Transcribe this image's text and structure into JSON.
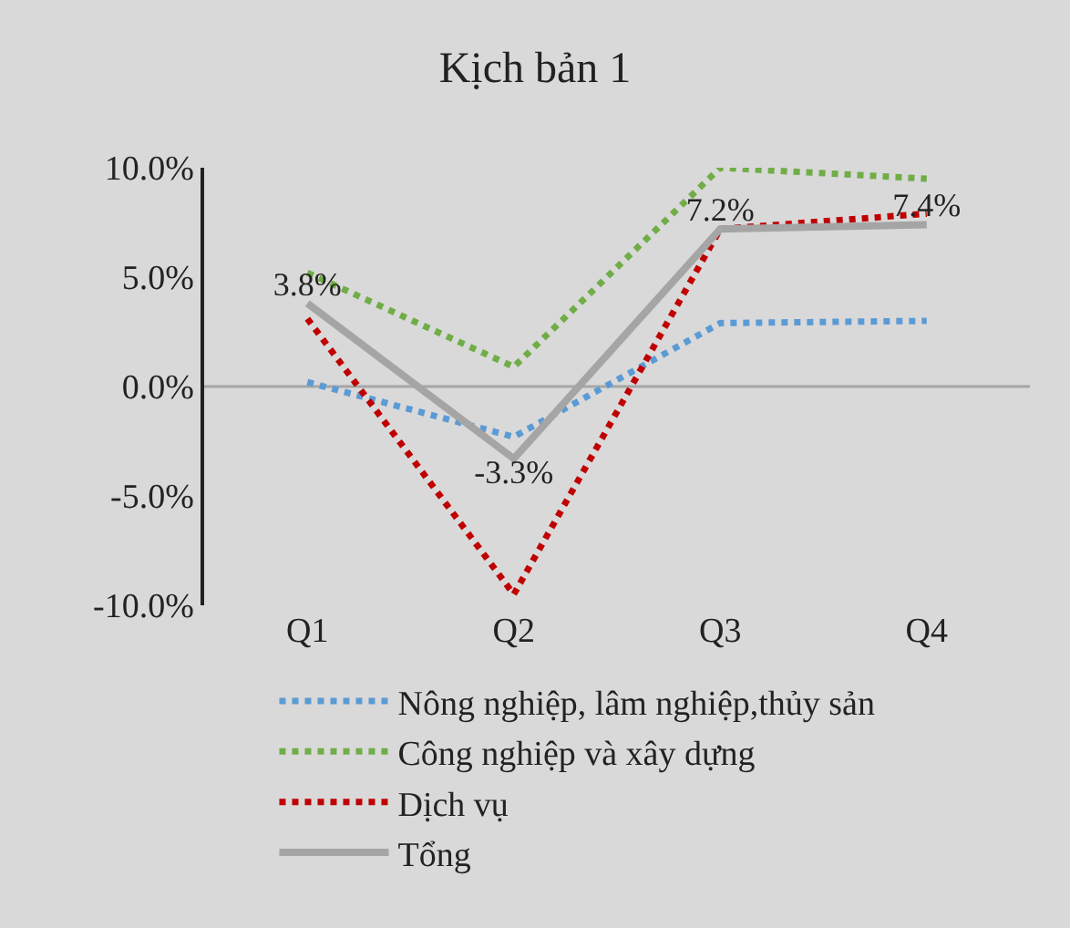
{
  "chart_data": {
    "type": "line",
    "title": "Kịch bản 1",
    "categories": [
      "Q1",
      "Q2",
      "Q3",
      "Q4"
    ],
    "series": [
      {
        "name": "Nông nghiệp, lâm nghiệp,thủy sản",
        "color": "#5b9bd5",
        "line_style": "dotted",
        "values": [
          0.2,
          -2.3,
          2.9,
          3.0
        ]
      },
      {
        "name": "Công nghiệp và xây dựng",
        "color": "#70ad47",
        "line_style": "dotted",
        "values": [
          5.2,
          0.9,
          10.0,
          9.5
        ]
      },
      {
        "name": "Dịch vụ",
        "color": "#c00000",
        "line_style": "dotted",
        "values": [
          3.1,
          -9.5,
          7.2,
          7.9
        ]
      },
      {
        "name": "Tổng",
        "color": "#a5a5a5",
        "line_style": "solid",
        "values": [
          3.8,
          -3.3,
          7.2,
          7.4
        ],
        "value_labels": [
          "3.8%",
          "-3.3%",
          "7.2%",
          "7.4%"
        ]
      }
    ],
    "ylim": [
      -10,
      10
    ],
    "yticks": [
      {
        "value": -10,
        "label": "-10.0%"
      },
      {
        "value": -5,
        "label": "-5.0%"
      },
      {
        "value": 0,
        "label": "0.0%"
      },
      {
        "value": 5,
        "label": "5.0%"
      },
      {
        "value": 10,
        "label": "10.0%"
      }
    ],
    "ref_lines": [
      {
        "axis": "y",
        "value": 0,
        "color": "#a6a6a6"
      }
    ],
    "grid": false,
    "legend": "bottom",
    "marker": "none"
  }
}
